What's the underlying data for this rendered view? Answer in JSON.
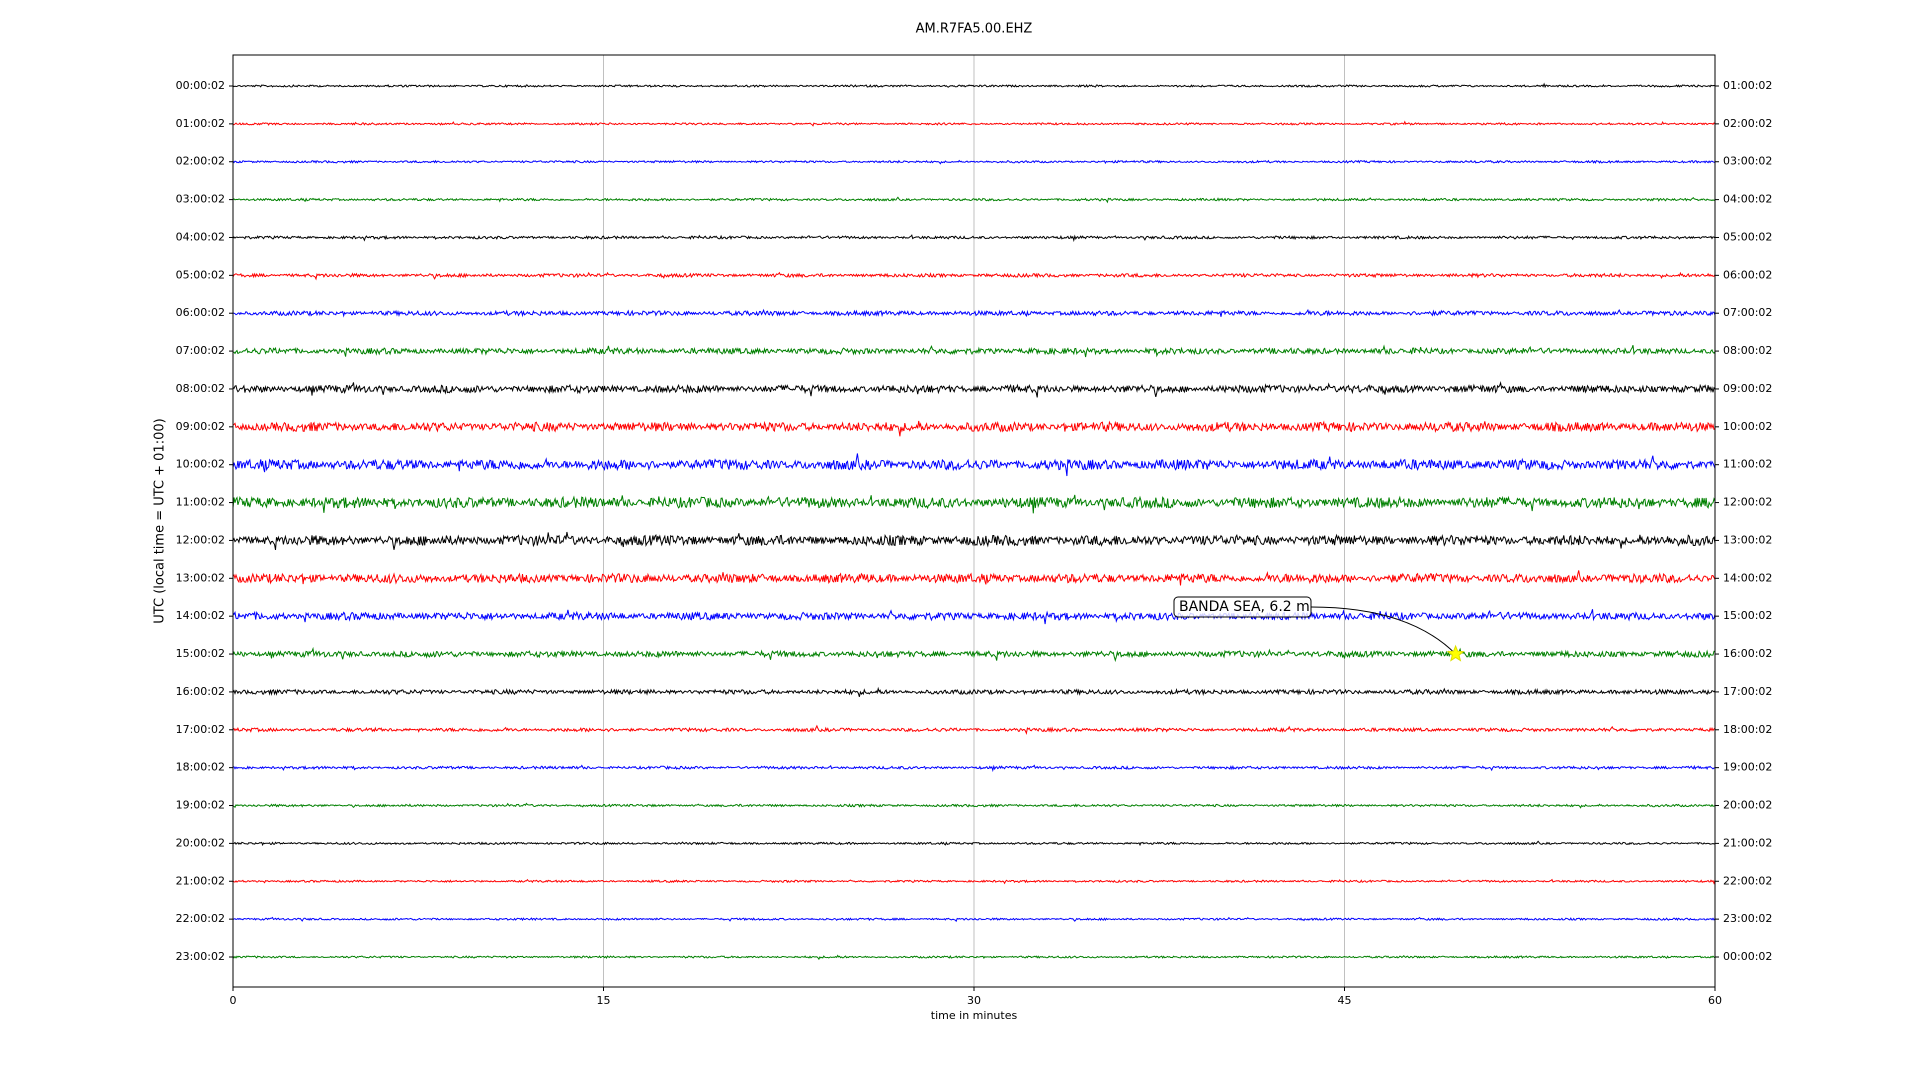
{
  "chart_data": {
    "type": "helicorder",
    "title": "AM.R7FA5.00.EHZ",
    "x_label": "time in minutes",
    "y_label": "UTC (local time = UTC + 01:00)",
    "xlim": [
      0,
      60
    ],
    "xticks": [
      0,
      15,
      30,
      45,
      60
    ],
    "grid": true,
    "colors": [
      "#000000",
      "#ff0000",
      "#0000ff",
      "#008000"
    ],
    "row_labels": [
      "00:00:02",
      "01:00:02",
      "02:00:02",
      "03:00:02",
      "04:00:02",
      "05:00:02",
      "06:00:02",
      "07:00:02",
      "08:00:02",
      "09:00:02",
      "10:00:02",
      "11:00:02",
      "12:00:02",
      "13:00:02",
      "14:00:02",
      "15:00:02",
      "16:00:02",
      "17:00:02",
      "18:00:02",
      "19:00:02",
      "20:00:02",
      "21:00:02",
      "22:00:02",
      "23:00:02"
    ],
    "right_labels": [
      "01:00:02",
      "02:00:02",
      "03:00:02",
      "04:00:02",
      "05:00:02",
      "06:00:02",
      "07:00:02",
      "08:00:02",
      "09:00:02",
      "10:00:02",
      "11:00:02",
      "12:00:02",
      "13:00:02",
      "14:00:02",
      "15:00:02",
      "16:00:02",
      "17:00:02",
      "18:00:02",
      "19:00:02",
      "20:00:02",
      "21:00:02",
      "22:00:02",
      "23:00:02",
      "00:00:02"
    ],
    "events": [
      {
        "label": "BANDA SEA, 6.2 m",
        "x": 49.5,
        "row": 15
      }
    ]
  }
}
